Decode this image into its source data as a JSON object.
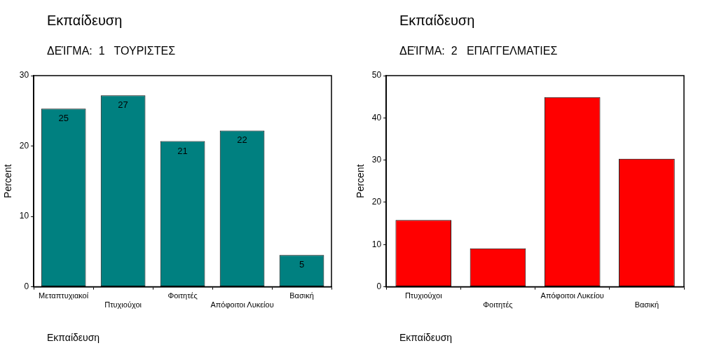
{
  "chart_data": [
    {
      "type": "bar",
      "title": "Εκπαίδευση",
      "subtitle": "ΔΕΊΓΜΑ:  1   ΤΟΥΡΙΣΤΕΣ",
      "xlabel": "Εκπαίδευση",
      "ylabel": "Percent",
      "categories": [
        "Μεταπτυχιακοί",
        "Πτυχιούχοι",
        "Φοιτητές",
        "Απόφοιτοι Λυκείου",
        "Βασική"
      ],
      "values": [
        25.3,
        27.2,
        20.7,
        22.2,
        4.5
      ],
      "value_labels": [
        "25",
        "27",
        "21",
        "22",
        "5"
      ],
      "color": "#008080",
      "ylim": [
        0,
        30
      ],
      "yticks": [
        0,
        10,
        20,
        30
      ]
    },
    {
      "type": "bar",
      "title": "Εκπαίδευση",
      "subtitle": "ΔΕΊΓΜΑ:  2   ΕΠΑΓΓΕΛΜΑΤΙΕΣ",
      "xlabel": "Εκπαίδευση",
      "ylabel": "Percent",
      "categories": [
        "Πτυχιούχοι",
        "Φοιτητές",
        "Απόφοιτοι Λυκείου",
        "Βασική"
      ],
      "values": [
        15.8,
        9.1,
        44.9,
        30.3
      ],
      "color": "#ff0000",
      "ylim": [
        0,
        50
      ],
      "yticks": [
        0,
        10,
        20,
        30,
        40,
        50
      ]
    }
  ]
}
